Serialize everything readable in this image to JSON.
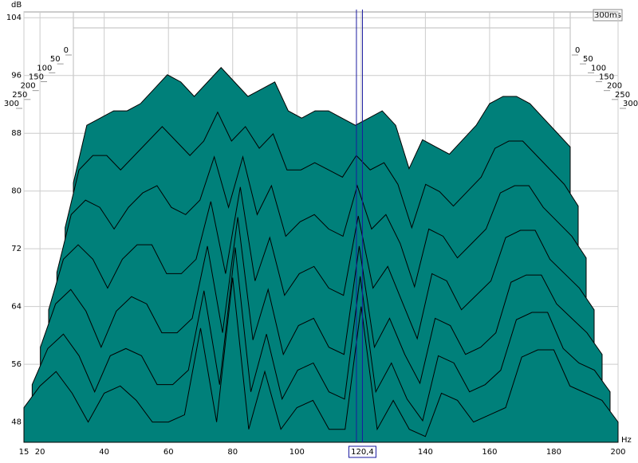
{
  "chart_data": {
    "type": "waterfall",
    "y_label": "dB",
    "x_label": "Hz",
    "time_label": "300ms",
    "xlim": [
      15,
      200
    ],
    "ylim": [
      45.2,
      104.8
    ],
    "xticks": [
      15,
      20,
      40,
      60,
      80,
      100,
      120,
      140,
      160,
      180,
      200
    ],
    "yticks": [
      104,
      96,
      88,
      80,
      72,
      64,
      56,
      48
    ],
    "zlim": [
      0,
      300
    ],
    "zticks": [
      0,
      50,
      100,
      150,
      200,
      250,
      300
    ],
    "cursor": {
      "value": 120.4,
      "label": "120,4"
    },
    "color": "#00807a",
    "grid": true,
    "x": [
      15,
      20,
      25,
      30,
      35,
      40,
      45,
      50,
      55,
      60,
      65,
      70,
      75,
      80,
      85,
      90,
      95,
      100,
      105,
      110,
      115,
      120,
      125,
      130,
      135,
      140,
      145,
      150,
      155,
      160,
      165,
      170,
      175,
      180,
      185,
      190,
      195,
      200
    ],
    "series": [
      {
        "name": "0",
        "values": [
          80,
          88,
          89,
          90,
          90,
          91,
          93,
          95,
          94,
          92,
          94,
          96,
          94,
          92,
          93,
          94,
          90,
          89,
          90,
          90,
          89,
          88,
          89,
          90,
          88,
          82,
          86,
          85,
          84,
          86,
          88,
          91,
          92,
          92,
          91,
          89,
          87,
          85
        ]
      },
      {
        "name": "50",
        "values": [
          74,
          82,
          84,
          84,
          82,
          84,
          86,
          88,
          86,
          84,
          86,
          90,
          86,
          88,
          85,
          87,
          82,
          82,
          83,
          82,
          81,
          84,
          82,
          83,
          80,
          74,
          80,
          79,
          77,
          79,
          81,
          85,
          86,
          86,
          84,
          82,
          80,
          77
        ]
      },
      {
        "name": "100",
        "values": [
          68,
          76,
          78,
          77,
          74,
          77,
          79,
          80,
          77,
          76,
          78,
          84,
          77,
          84,
          76,
          80,
          73,
          75,
          76,
          74,
          73,
          80,
          74,
          76,
          72,
          66,
          74,
          73,
          70,
          72,
          74,
          79,
          80,
          80,
          77,
          75,
          73,
          70
        ]
      },
      {
        "name": "150",
        "values": [
          63,
          70,
          72,
          70,
          66,
          70,
          72,
          72,
          68,
          68,
          70,
          78,
          68,
          80,
          67,
          73,
          65,
          68,
          69,
          66,
          65,
          76,
          66,
          69,
          64,
          59,
          68,
          67,
          63,
          65,
          67,
          73,
          74,
          74,
          70,
          68,
          66,
          63
        ]
      },
      {
        "name": "200",
        "values": [
          58,
          64,
          66,
          63,
          58,
          63,
          65,
          64,
          60,
          60,
          62,
          72,
          60,
          76,
          59,
          66,
          57,
          61,
          62,
          58,
          57,
          72,
          58,
          62,
          57,
          53,
          62,
          61,
          57,
          58,
          60,
          67,
          68,
          68,
          64,
          62,
          60,
          57
        ]
      },
      {
        "name": "250",
        "values": [
          53,
          58,
          60,
          57,
          52,
          57,
          58,
          57,
          53,
          53,
          55,
          66,
          53,
          72,
          52,
          60,
          51,
          55,
          56,
          52,
          51,
          68,
          52,
          56,
          51,
          48,
          57,
          56,
          52,
          53,
          55,
          62,
          63,
          63,
          58,
          56,
          55,
          52
        ]
      },
      {
        "name": "300",
        "values": [
          50,
          53,
          55,
          52,
          48,
          52,
          53,
          51,
          48,
          48,
          49,
          61,
          48,
          68,
          47,
          55,
          47,
          50,
          51,
          47,
          47,
          64,
          47,
          51,
          47,
          46,
          52,
          51,
          48,
          49,
          50,
          57,
          58,
          58,
          53,
          52,
          51,
          48
        ]
      }
    ]
  }
}
